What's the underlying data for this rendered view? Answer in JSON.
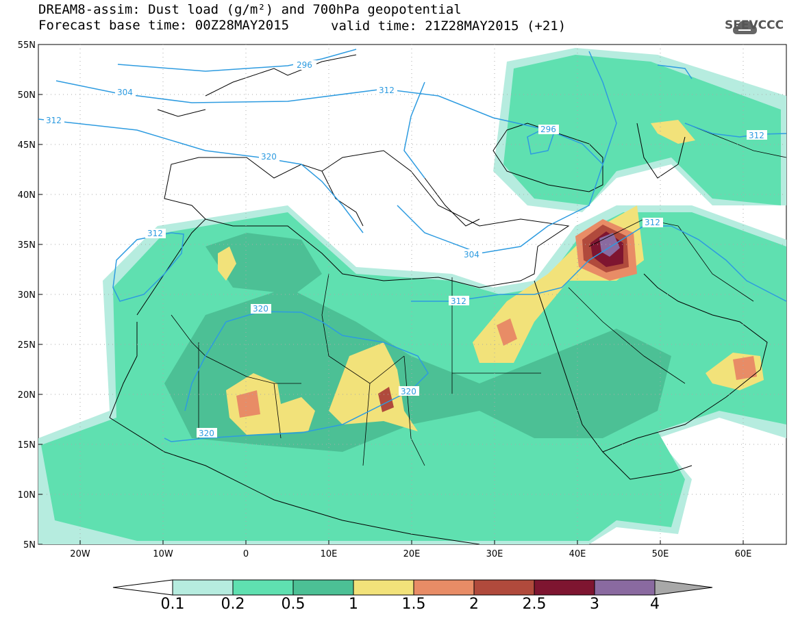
{
  "title": {
    "line1": "DREAM8-assim: Dust load (g/m²) and 700hPa geopotential",
    "line2_base": "Forecast base time: 00Z28MAY2015",
    "line2_valid": "valid time: 21Z28MAY2015 (+21)"
  },
  "logo": {
    "text": "SEEVCCC",
    "icon": "cloud-icon"
  },
  "axes": {
    "lon_ticks": [
      "20W",
      "10W",
      "0",
      "10E",
      "20E",
      "30E",
      "40E",
      "50E",
      "60E"
    ],
    "lat_ticks": [
      "55N",
      "50N",
      "45N",
      "40N",
      "35N",
      "30N",
      "25N",
      "20N",
      "15N",
      "10N",
      "5N"
    ]
  },
  "contour_labels": [
    "296",
    "304",
    "312",
    "320",
    "296",
    "312",
    "312",
    "304",
    "312",
    "312",
    "320",
    "320",
    "320",
    "312"
  ],
  "colorbar": {
    "levels": [
      "0.1",
      "0.2",
      "0.5",
      "1",
      "1.5",
      "2",
      "2.5",
      "3",
      "4"
    ],
    "colors": [
      "#ffffff",
      "#b6ecdf",
      "#5fe0b0",
      "#4cc095",
      "#f2e27a",
      "#e88c66",
      "#b04a3c",
      "#7e1530",
      "#8a6aa0",
      "#a8a8a8"
    ]
  }
}
